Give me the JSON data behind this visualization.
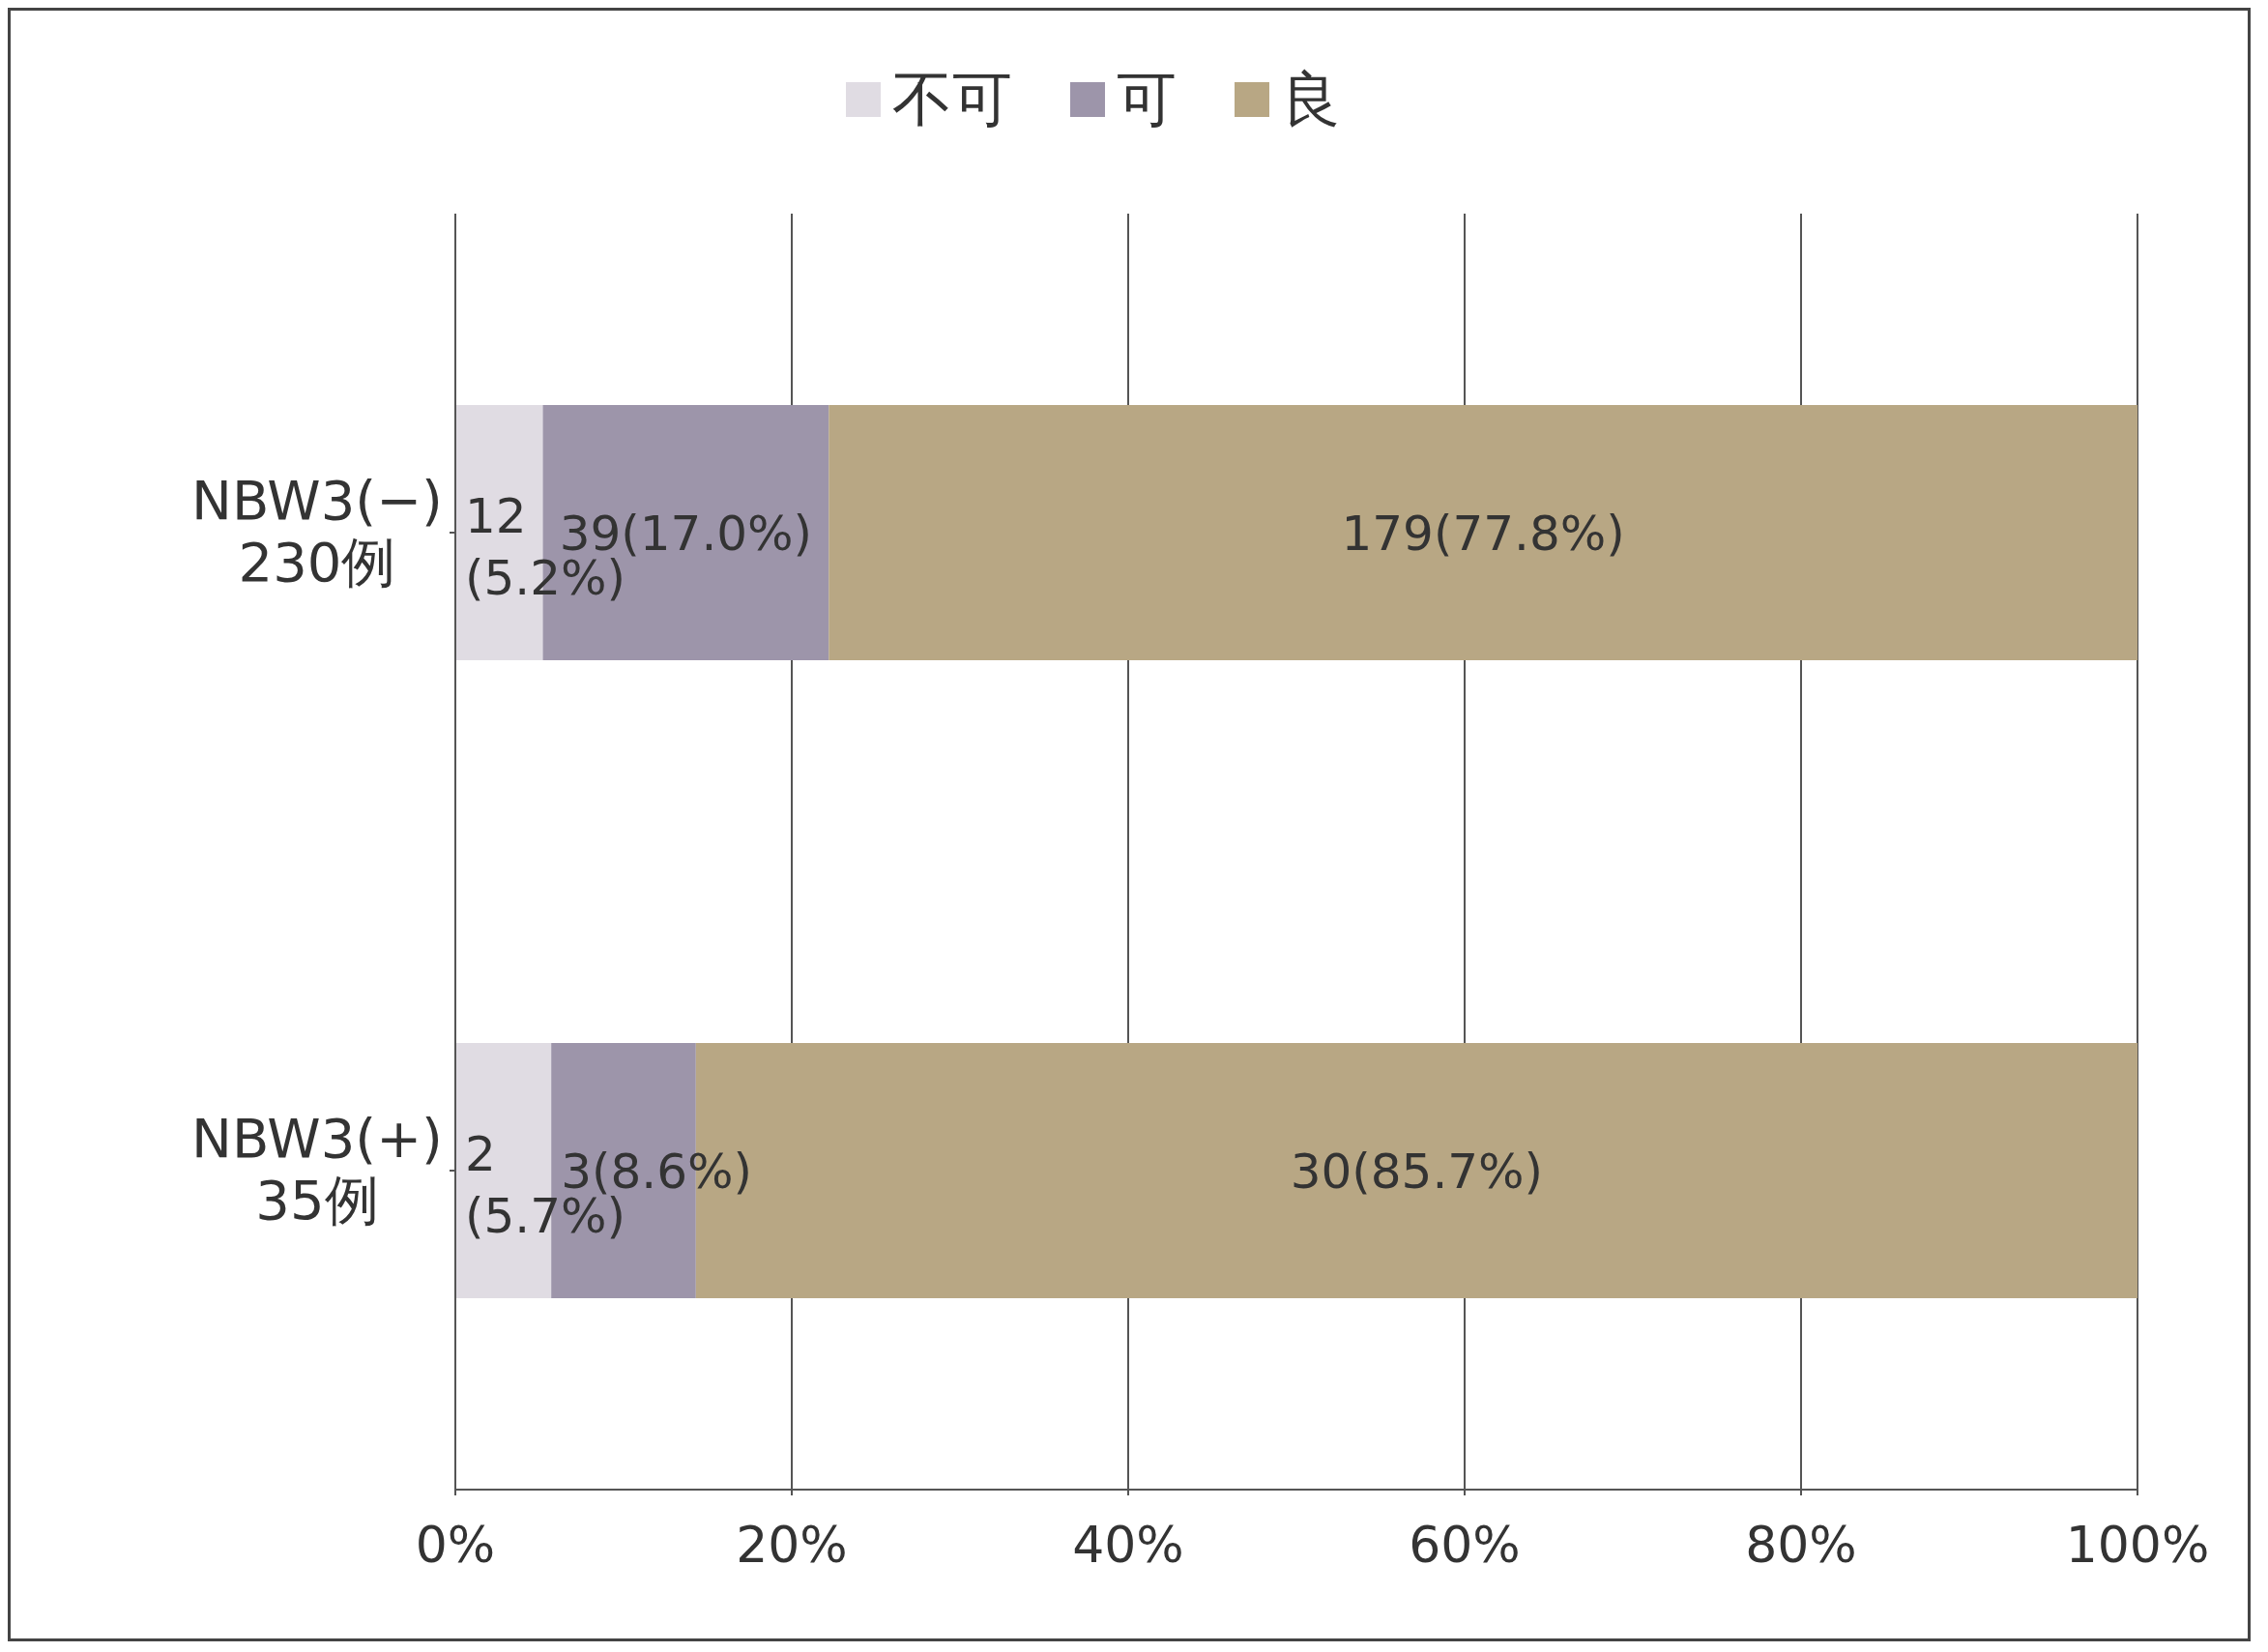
{
  "chart_data": {
    "type": "bar",
    "orientation": "horizontal",
    "stacked": true,
    "categories": [
      "NBW3(−)\n230例",
      "NBW3(+)\n35例"
    ],
    "series": [
      {
        "name": "不可",
        "color": "#e0dce3",
        "values": [
          5.2,
          5.7
        ],
        "value_labels": [
          "12\n(5.2%)",
          "2\n(5.7%)"
        ]
      },
      {
        "name": "可",
        "color": "#9d95aa",
        "values": [
          17.0,
          8.6
        ],
        "value_labels": [
          "39(17.0%)",
          "3(8.6%)"
        ]
      },
      {
        "name": "良",
        "color": "#b8a784",
        "values": [
          77.8,
          85.7
        ],
        "value_labels": [
          "179(77.8%)",
          "30(85.7%)"
        ]
      }
    ],
    "xlim": [
      0,
      100
    ],
    "xticks": [
      {
        "value": 0,
        "label": "0%"
      },
      {
        "value": 20,
        "label": "20%"
      },
      {
        "value": 40,
        "label": "40%"
      },
      {
        "value": 60,
        "label": "60%"
      },
      {
        "value": 80,
        "label": "80%"
      },
      {
        "value": 100,
        "label": "100%"
      }
    ],
    "grid": "x",
    "legend": "top"
  }
}
